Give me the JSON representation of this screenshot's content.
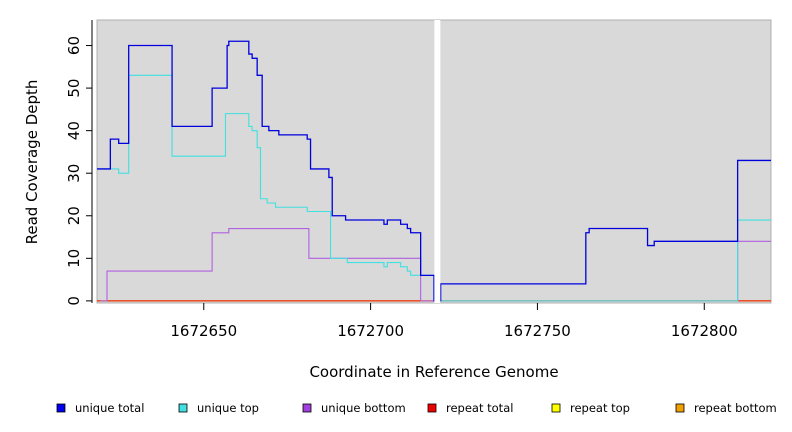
{
  "chart_data": {
    "type": "line",
    "title": "",
    "xlabel": "Coordinate in Reference Genome",
    "ylabel": "Read Coverage Depth",
    "xlim": [
      1672618,
      1672820
    ],
    "ylim": [
      -0.5,
      66
    ],
    "x_ticks": [
      1672650,
      1672700,
      1672750,
      1672800
    ],
    "x_tick_labels": [
      "1672650",
      "1672700",
      "1672750",
      "1672800"
    ],
    "y_ticks": [
      0,
      10,
      20,
      30,
      40,
      50,
      60
    ],
    "y_tick_labels": [
      "0",
      "10",
      "20",
      "30",
      "40",
      "50",
      "60"
    ],
    "grid": false,
    "background": "#d9d9d9",
    "gap_x": 1672720,
    "legend_position": "bottom",
    "series": [
      {
        "name": "unique total",
        "color": "#0000dd",
        "steps": [
          [
            1672618,
            31
          ],
          [
            1672622,
            38
          ],
          [
            1672624.5,
            37
          ],
          [
            1672627.5,
            60
          ],
          [
            1672640.5,
            41
          ],
          [
            1672652.5,
            50
          ],
          [
            1672657,
            60
          ],
          [
            1672657.5,
            61
          ],
          [
            1672663.5,
            58
          ],
          [
            1672664.5,
            57
          ],
          [
            1672666,
            53
          ],
          [
            1672667.5,
            41
          ],
          [
            1672669.5,
            40
          ],
          [
            1672672.5,
            39
          ],
          [
            1672681,
            38
          ],
          [
            1672682,
            31
          ],
          [
            1672687.5,
            29
          ],
          [
            1672688.5,
            20
          ],
          [
            1672692.5,
            19
          ],
          [
            1672704,
            18
          ],
          [
            1672705,
            19
          ],
          [
            1672709,
            18
          ],
          [
            1672711,
            17
          ],
          [
            1672712,
            16
          ],
          [
            1672715,
            6
          ],
          [
            1672719,
            0
          ],
          [
            1672721,
            4
          ],
          [
            1672764.5,
            16
          ],
          [
            1672765.5,
            17
          ],
          [
            1672783,
            13
          ],
          [
            1672785,
            14
          ],
          [
            1672810,
            33
          ],
          [
            1672820,
            33
          ]
        ]
      },
      {
        "name": "unique top",
        "color": "#40e0e0",
        "steps": [
          [
            1672618,
            31
          ],
          [
            1672624.5,
            30
          ],
          [
            1672627.5,
            53
          ],
          [
            1672640.5,
            34
          ],
          [
            1672656.5,
            44
          ],
          [
            1672663.5,
            41
          ],
          [
            1672664.5,
            40
          ],
          [
            1672666,
            36
          ],
          [
            1672667,
            24
          ],
          [
            1672669,
            23
          ],
          [
            1672671.5,
            22
          ],
          [
            1672681,
            21
          ],
          [
            1672688,
            10
          ],
          [
            1672693,
            9
          ],
          [
            1672704,
            8
          ],
          [
            1672705,
            9
          ],
          [
            1672709,
            8
          ],
          [
            1672711,
            7
          ],
          [
            1672712,
            6
          ],
          [
            1672715,
            6
          ],
          [
            1672719,
            0
          ],
          [
            1672810,
            19
          ],
          [
            1672820,
            19
          ]
        ]
      },
      {
        "name": "unique bottom",
        "color": "#b060e0",
        "steps": [
          [
            1672619,
            0
          ],
          [
            1672621,
            7
          ],
          [
            1672652.5,
            16
          ],
          [
            1672657.5,
            17
          ],
          [
            1672681.5,
            10
          ],
          [
            1672715,
            0
          ],
          [
            1672810,
            14
          ],
          [
            1672820,
            14
          ]
        ]
      },
      {
        "name": "repeat total",
        "color": "#ee0000",
        "steps": [
          [
            1672618,
            0
          ],
          [
            1672820,
            0
          ]
        ]
      },
      {
        "name": "repeat top",
        "color": "#ffff00",
        "steps": [
          [
            1672618,
            0
          ],
          [
            1672820,
            0
          ]
        ]
      },
      {
        "name": "repeat bottom",
        "color": "#f0a000",
        "steps": [
          [
            1672618,
            0
          ],
          [
            1672820,
            0
          ]
        ]
      }
    ],
    "legend": [
      {
        "label": "unique total",
        "color": "#0000ee"
      },
      {
        "label": "unique top",
        "color": "#40e0e0"
      },
      {
        "label": "unique bottom",
        "color": "#a040e0"
      },
      {
        "label": "repeat total",
        "color": "#ee0000"
      },
      {
        "label": "repeat top",
        "color": "#ffff00"
      },
      {
        "label": "repeat bottom",
        "color": "#f0a000"
      }
    ]
  }
}
